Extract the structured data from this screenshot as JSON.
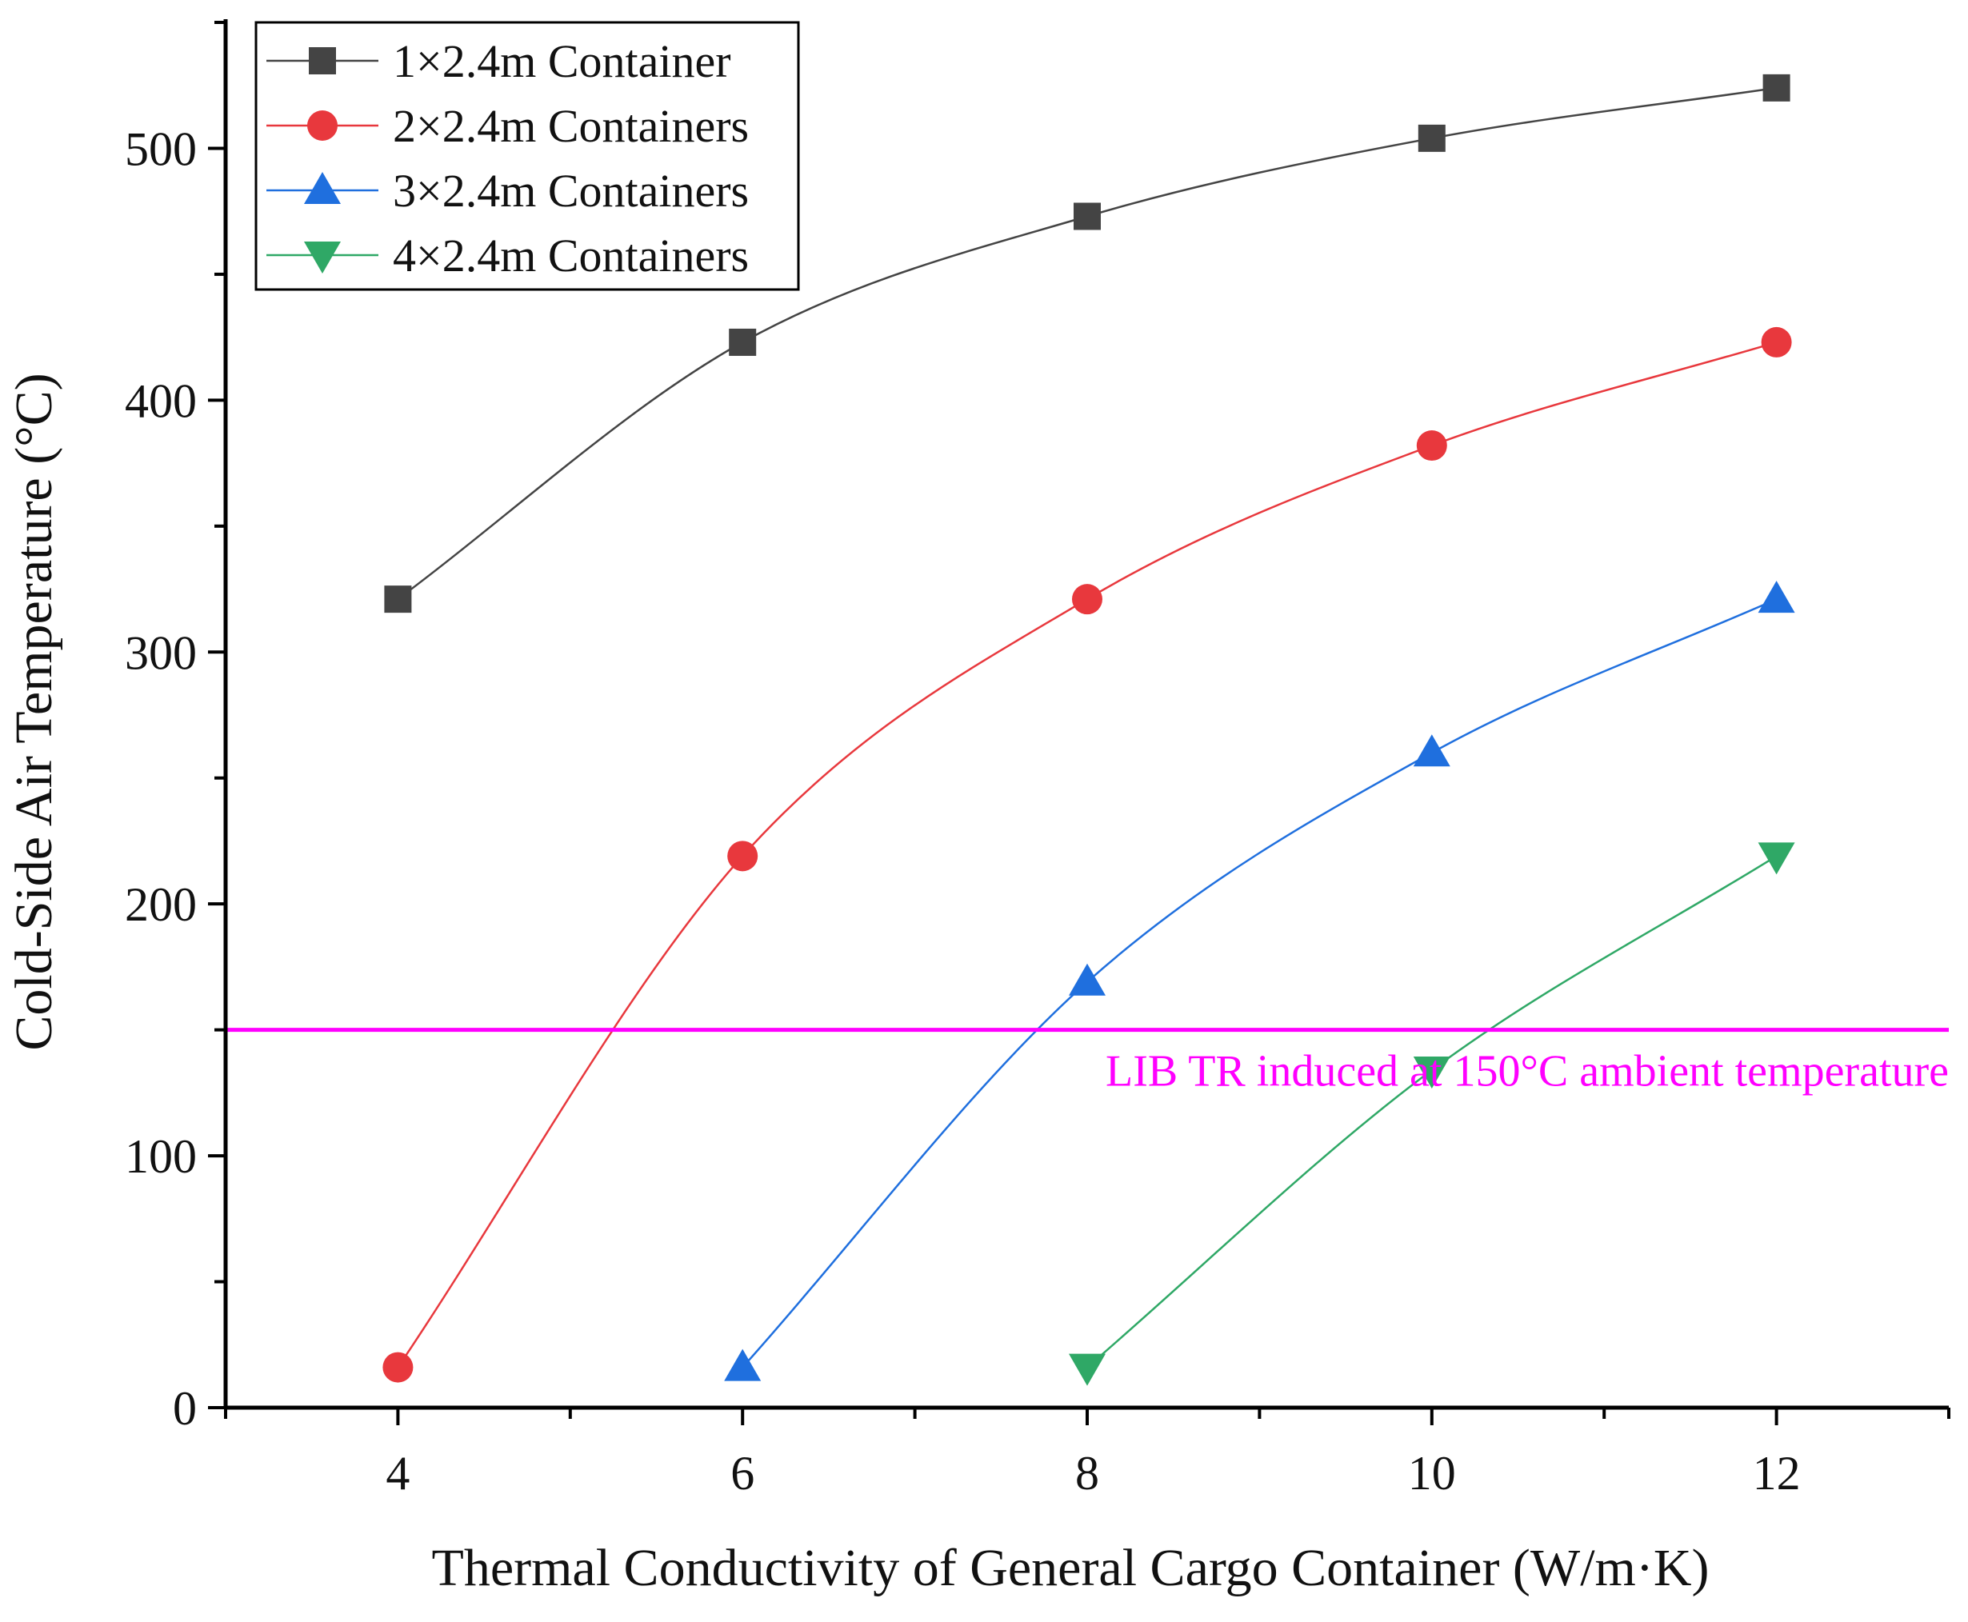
{
  "chart_data": {
    "type": "line",
    "title": "",
    "xlabel": "Thermal Conductivity of General Cargo Container (W/m·K)",
    "ylabel": "Cold-Side Air Temperature (°C)",
    "xlim": [
      3,
      13
    ],
    "ylim": [
      0,
      550
    ],
    "x_ticks": [
      4,
      6,
      8,
      10,
      12
    ],
    "y_ticks": [
      0,
      100,
      200,
      300,
      400,
      500
    ],
    "legend_position": "top-left",
    "series": [
      {
        "name": "1×2.4m Container",
        "color": "#444444",
        "marker": "square",
        "x": [
          4,
          6,
          8,
          10,
          12
        ],
        "y": [
          321,
          423,
          473,
          504,
          524
        ]
      },
      {
        "name": "2×2.4m Containers",
        "color": "#e8383d",
        "marker": "circle",
        "x": [
          4,
          6,
          8,
          10,
          12
        ],
        "y": [
          16,
          219,
          321,
          382,
          423
        ]
      },
      {
        "name": "3×2.4m Containers",
        "color": "#1f6fde",
        "marker": "triangle-up",
        "x": [
          6,
          8,
          10,
          12
        ],
        "y": [
          16,
          169,
          260,
          321
        ]
      },
      {
        "name": "4×2.4m Containers",
        "color": "#2fa866",
        "marker": "triangle-down",
        "x": [
          8,
          10,
          12
        ],
        "y": [
          16,
          134,
          219
        ]
      }
    ],
    "reference_line": {
      "y": 150,
      "color": "#ff00ff",
      "label": "LIB TR induced at 150°C ambient temperature"
    }
  }
}
